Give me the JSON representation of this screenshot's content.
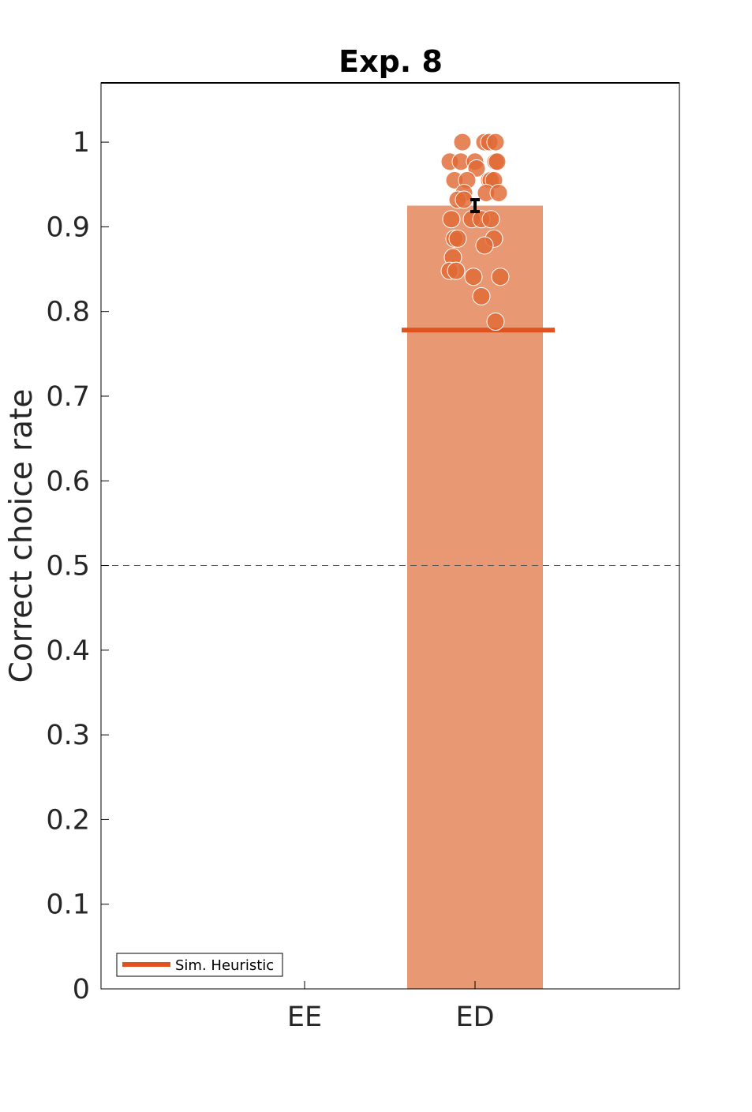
{
  "chart_data": {
    "type": "bar",
    "title": "Exp. 8",
    "xlabel": "",
    "ylabel": "Correct choice rate",
    "ylim": [
      0,
      1.07
    ],
    "yticks": [
      0,
      0.1,
      0.2,
      0.3,
      0.4,
      0.5,
      0.6,
      0.7,
      0.8,
      0.9,
      1
    ],
    "ytick_labels": [
      "0",
      "0.1",
      "0.2",
      "0.3",
      "0.4",
      "0.5",
      "0.6",
      "0.7",
      "0.8",
      "0.9",
      "1"
    ],
    "categories": [
      "EE",
      "ED"
    ],
    "values": [
      null,
      0.925
    ],
    "error": [
      null,
      0.007
    ],
    "chance_level": 0.5,
    "simulated_heuristic": 0.778,
    "legend": {
      "position": "bottom-left",
      "entries": [
        "Sim. Heuristic"
      ]
    },
    "participant_points": [
      1.0,
      1.0,
      1.0,
      1.0,
      0.977,
      0.977,
      0.977,
      0.977,
      0.977,
      0.969,
      0.955,
      0.955,
      0.955,
      0.955,
      0.955,
      0.94,
      0.94,
      0.94,
      0.932,
      0.932,
      0.909,
      0.909,
      0.909,
      0.909,
      0.886,
      0.886,
      0.886,
      0.878,
      0.864,
      0.848,
      0.848,
      0.841,
      0.841,
      0.818,
      0.788
    ],
    "colors": {
      "bar": "#e89873",
      "points": "#e06a35",
      "heuristic_line": "#e0521f",
      "error_bar": "#000000",
      "chance_line": "#555555"
    }
  }
}
